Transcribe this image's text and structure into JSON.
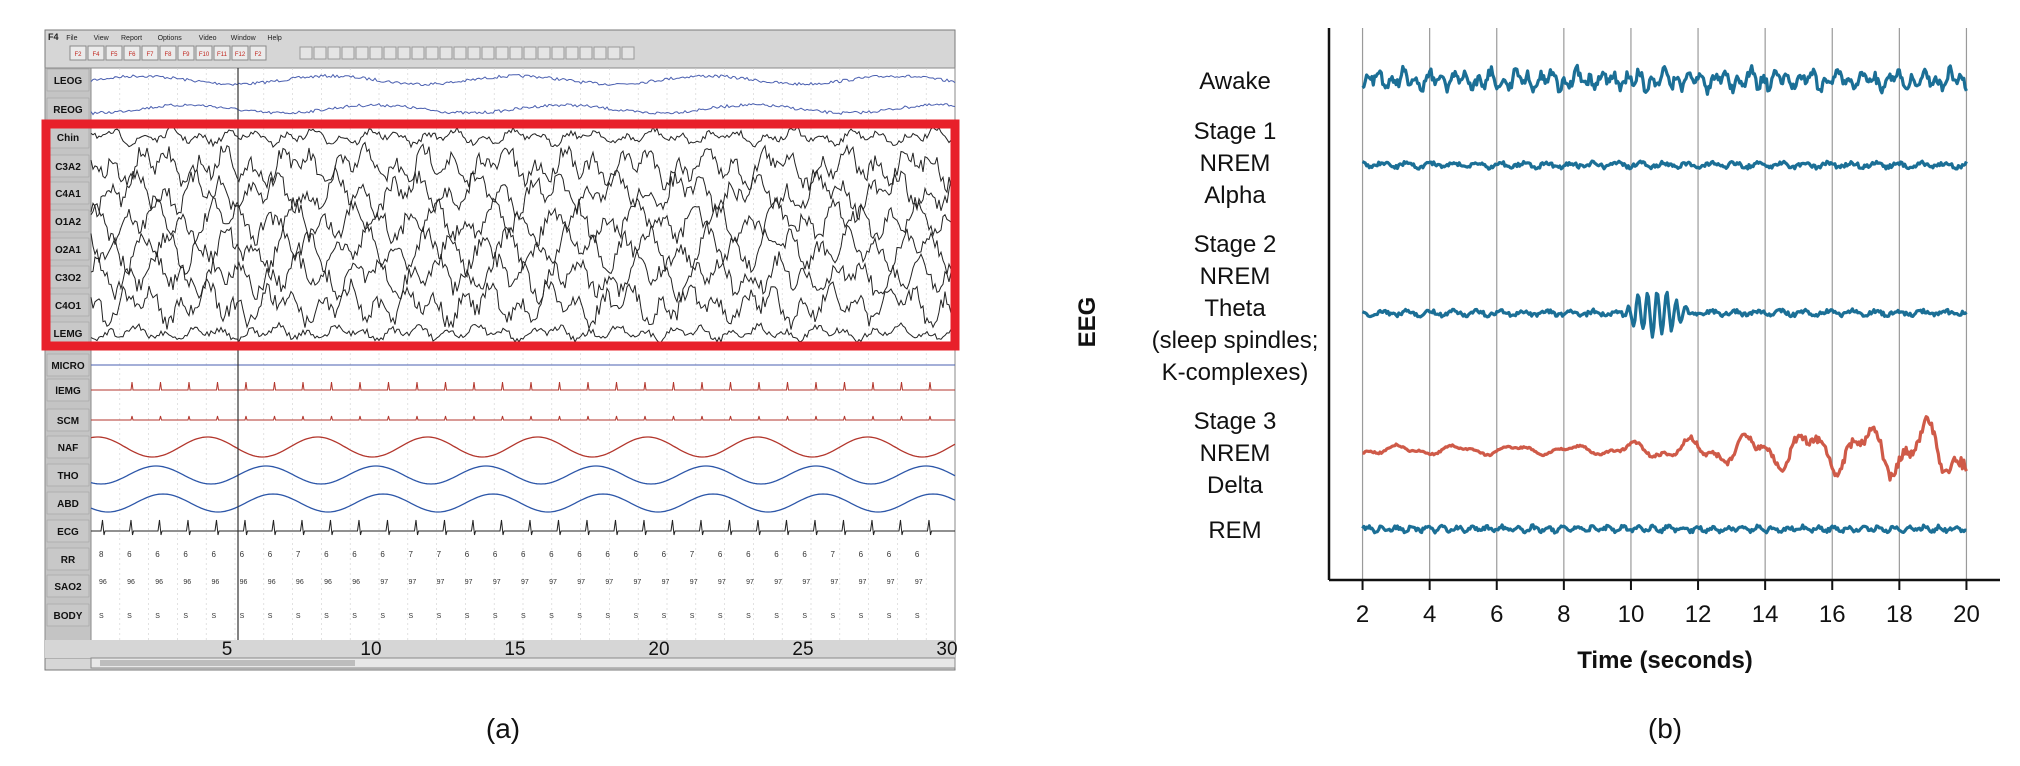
{
  "captions": {
    "a": "(a)",
    "b": "(b)"
  },
  "psg": {
    "menu_items": [
      "F4",
      "File",
      "View",
      "Report",
      "Options",
      "Video",
      "Window",
      "Help"
    ],
    "toolbar_keys": [
      "F2",
      "F4",
      "F5",
      "F6",
      "F7",
      "F8",
      "F9",
      "F10",
      "F11",
      "F12",
      "F2"
    ],
    "channels": [
      "LEOG",
      "REOG",
      "Chin",
      "C3A2",
      "C4A1",
      "O1A2",
      "O2A1",
      "C3O2",
      "C4O1",
      "LEMG",
      "MICRO",
      "lEMG",
      "SCM",
      "NAF",
      "THO",
      "ABD",
      "ECG",
      "RR",
      "SAO2",
      "BODY"
    ],
    "time_ticks": [
      "5",
      "10",
      "15",
      "20",
      "25",
      "30"
    ],
    "highlight_color": "#e8202a",
    "rr_values": [
      "8",
      "6",
      "6",
      "6",
      "6",
      "6",
      "6",
      "7",
      "6",
      "6",
      "6",
      "7",
      "7",
      "6",
      "6",
      "6",
      "6",
      "6",
      "6",
      "6",
      "6",
      "7",
      "6",
      "6",
      "6",
      "6",
      "7",
      "6",
      "6",
      "6"
    ],
    "sao2_values": [
      "96",
      "96",
      "96",
      "96",
      "96",
      "96",
      "96",
      "96",
      "96",
      "96",
      "97",
      "97",
      "97",
      "97",
      "97",
      "97",
      "97",
      "97",
      "97",
      "97",
      "97",
      "97",
      "97",
      "97",
      "97",
      "97",
      "97",
      "97",
      "97",
      "97"
    ],
    "body_values": [
      "S",
      "S",
      "S",
      "S",
      "S",
      "S",
      "S",
      "S",
      "S",
      "S",
      "S",
      "S",
      "S",
      "S",
      "S",
      "S",
      "S",
      "S",
      "S",
      "S",
      "S",
      "S",
      "S",
      "S",
      "S",
      "S",
      "S",
      "S",
      "S",
      "S"
    ]
  },
  "chart_data": {
    "type": "line",
    "y_title": "EEG",
    "xlabel": "Time (seconds)",
    "xlim": [
      1,
      21
    ],
    "x_ticks": [
      2,
      4,
      6,
      8,
      10,
      12,
      14,
      16,
      18,
      20
    ],
    "series": [
      {
        "name": "Awake",
        "label_lines": [
          "Awake"
        ],
        "color": "#1b6f96",
        "amplitude": "high",
        "frequency": "fast"
      },
      {
        "name": "Stage 1 NREM Alpha",
        "label_lines": [
          "Stage 1",
          "NREM",
          "Alpha"
        ],
        "color": "#1b6f96",
        "amplitude": "low",
        "frequency": "medium"
      },
      {
        "name": "Stage 2 NREM Theta (sleep spindles; K-complexes)",
        "label_lines": [
          "Stage 2",
          "NREM",
          "Theta",
          "(sleep spindles;",
          "K-complexes)"
        ],
        "color": "#1b6f96",
        "amplitude": "low",
        "frequency": "medium",
        "burst_between": [
          9.7,
          11.8
        ]
      },
      {
        "name": "Stage 3 NREM Delta",
        "label_lines": [
          "Stage 3",
          "NREM",
          "Delta"
        ],
        "color": "#cf5a48",
        "amplitude": "increasing",
        "frequency": "slow"
      },
      {
        "name": "REM",
        "label_lines": [
          "REM"
        ],
        "color": "#1b6f96",
        "amplitude": "low",
        "frequency": "fast"
      }
    ]
  }
}
